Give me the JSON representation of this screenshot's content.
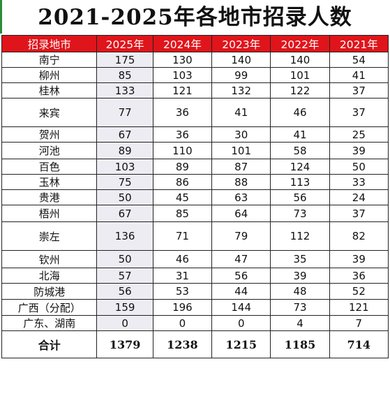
{
  "title": "2021-2025年各地市招录人数",
  "headers": [
    "招录地市",
    "2025年",
    "2024年",
    "2023年",
    "2022年",
    "2021年"
  ],
  "rows": [
    {
      "city": "南宁",
      "values": [
        "175",
        "130",
        "140",
        "140",
        "54"
      ]
    },
    {
      "city": "柳州",
      "values": [
        "85",
        "103",
        "99",
        "101",
        "41"
      ]
    },
    {
      "city": "桂林",
      "values": [
        "133",
        "121",
        "132",
        "122",
        "37"
      ]
    },
    {
      "city": "来宾",
      "values": [
        "77",
        "36",
        "41",
        "46",
        "37"
      ]
    },
    {
      "city": "贺州",
      "values": [
        "67",
        "36",
        "30",
        "41",
        "25"
      ]
    },
    {
      "city": "河池",
      "values": [
        "89",
        "110",
        "101",
        "58",
        "39"
      ]
    },
    {
      "city": "百色",
      "values": [
        "103",
        "89",
        "87",
        "124",
        "50"
      ]
    },
    {
      "city": "玉林",
      "values": [
        "75",
        "86",
        "88",
        "113",
        "33"
      ]
    },
    {
      "city": "贵港",
      "values": [
        "50",
        "45",
        "63",
        "56",
        "24"
      ]
    },
    {
      "city": "梧州",
      "values": [
        "67",
        "85",
        "64",
        "73",
        "37"
      ]
    },
    {
      "city": "崇左",
      "values": [
        "136",
        "71",
        "79",
        "112",
        "82"
      ]
    },
    {
      "city": "钦州",
      "values": [
        "50",
        "46",
        "47",
        "35",
        "39"
      ]
    },
    {
      "city": "北海",
      "values": [
        "57",
        "31",
        "56",
        "39",
        "36"
      ]
    },
    {
      "city": "防城港",
      "values": [
        "56",
        "53",
        "44",
        "48",
        "52"
      ]
    },
    {
      "city": "广西（分配）",
      "values": [
        "159",
        "196",
        "144",
        "73",
        "121"
      ]
    },
    {
      "city": "广东、湖南",
      "values": [
        "0",
        "0",
        "0",
        "4",
        "7"
      ]
    }
  ],
  "total": {
    "label": "合计",
    "values": [
      "1379",
      "1238",
      "1215",
      "1185",
      "714"
    ]
  },
  "colors": {
    "header_bg": "#e0151b",
    "header_text": "#ffffff",
    "highlight_col": "#ececf2",
    "edge": "#2e8b3a"
  }
}
